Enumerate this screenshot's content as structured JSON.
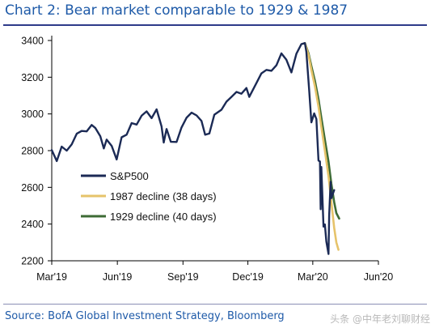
{
  "title": "Chart 2: Bear market comparable to 1929 & 1987",
  "source": "Source: BofA Global Investment Strategy, Bloomberg",
  "watermark": "头条 @中年老刘聊财经",
  "chart_data": {
    "type": "line",
    "title": "Chart 2: Bear market comparable to 1929 & 1987",
    "xlabel": "",
    "ylabel": "",
    "x_ticks": [
      "Mar'19",
      "Jun'19",
      "Sep'19",
      "Dec'19",
      "Mar'20",
      "Jun'20"
    ],
    "ylim": [
      2200,
      3400
    ],
    "y_ticks": [
      2200,
      2400,
      2600,
      2800,
      3000,
      3200,
      3400
    ],
    "grid": false,
    "legend_position": "lower-left",
    "series": [
      {
        "name": "S&P500",
        "color": "#1b2a55",
        "points": [
          [
            "2019-03-01",
            2803
          ],
          [
            "2019-03-08",
            2743
          ],
          [
            "2019-03-15",
            2822
          ],
          [
            "2019-03-22",
            2800
          ],
          [
            "2019-03-29",
            2834
          ],
          [
            "2019-04-05",
            2892
          ],
          [
            "2019-04-12",
            2907
          ],
          [
            "2019-04-19",
            2905
          ],
          [
            "2019-04-26",
            2940
          ],
          [
            "2019-05-01",
            2924
          ],
          [
            "2019-05-08",
            2879
          ],
          [
            "2019-05-13",
            2812
          ],
          [
            "2019-05-17",
            2860
          ],
          [
            "2019-05-24",
            2826
          ],
          [
            "2019-05-31",
            2752
          ],
          [
            "2019-06-07",
            2873
          ],
          [
            "2019-06-14",
            2887
          ],
          [
            "2019-06-21",
            2950
          ],
          [
            "2019-06-28",
            2942
          ],
          [
            "2019-07-05",
            2990
          ],
          [
            "2019-07-12",
            3014
          ],
          [
            "2019-07-19",
            2977
          ],
          [
            "2019-07-26",
            3025
          ],
          [
            "2019-08-02",
            2932
          ],
          [
            "2019-08-05",
            2844
          ],
          [
            "2019-08-09",
            2918
          ],
          [
            "2019-08-15",
            2848
          ],
          [
            "2019-08-23",
            2847
          ],
          [
            "2019-08-30",
            2926
          ],
          [
            "2019-09-06",
            2979
          ],
          [
            "2019-09-13",
            3007
          ],
          [
            "2019-09-20",
            2992
          ],
          [
            "2019-09-27",
            2962
          ],
          [
            "2019-10-02",
            2887
          ],
          [
            "2019-10-08",
            2893
          ],
          [
            "2019-10-15",
            2996
          ],
          [
            "2019-10-25",
            3023
          ],
          [
            "2019-11-01",
            3067
          ],
          [
            "2019-11-08",
            3093
          ],
          [
            "2019-11-15",
            3120
          ],
          [
            "2019-11-22",
            3110
          ],
          [
            "2019-11-29",
            3141
          ],
          [
            "2019-12-03",
            3093
          ],
          [
            "2019-12-13",
            3169
          ],
          [
            "2019-12-20",
            3221
          ],
          [
            "2019-12-27",
            3240
          ],
          [
            "2020-01-03",
            3235
          ],
          [
            "2020-01-10",
            3265
          ],
          [
            "2020-01-17",
            3330
          ],
          [
            "2020-01-24",
            3295
          ],
          [
            "2020-01-31",
            3226
          ],
          [
            "2020-02-07",
            3328
          ],
          [
            "2020-02-14",
            3380
          ],
          [
            "2020-02-19",
            3386
          ],
          [
            "2020-02-21",
            3338
          ],
          [
            "2020-02-25",
            3128
          ],
          [
            "2020-02-28",
            2954
          ],
          [
            "2020-03-03",
            3003
          ],
          [
            "2020-03-06",
            2972
          ],
          [
            "2020-03-09",
            2746
          ],
          [
            "2020-03-11",
            2741
          ],
          [
            "2020-03-12",
            2481
          ],
          [
            "2020-03-13",
            2711
          ],
          [
            "2020-03-16",
            2386
          ],
          [
            "2020-03-18",
            2398
          ],
          [
            "2020-03-20",
            2305
          ],
          [
            "2020-03-23",
            2237
          ],
          [
            "2020-03-24",
            2447
          ],
          [
            "2020-03-26",
            2630
          ],
          [
            "2020-03-27",
            2541
          ],
          [
            "2020-03-31",
            2585
          ]
        ]
      },
      {
        "name": "1987 decline (38 days)",
        "color": "#e6c36a",
        "points": [
          [
            "2020-02-19",
            3386
          ],
          [
            "2020-02-24",
            3320
          ],
          [
            "2020-02-28",
            3240
          ],
          [
            "2020-03-04",
            3150
          ],
          [
            "2020-03-09",
            3040
          ],
          [
            "2020-03-13",
            2930
          ],
          [
            "2020-03-18",
            2800
          ],
          [
            "2020-03-23",
            2660
          ],
          [
            "2020-03-27",
            2520
          ],
          [
            "2020-03-31",
            2380
          ],
          [
            "2020-04-03",
            2300
          ],
          [
            "2020-04-06",
            2260
          ]
        ]
      },
      {
        "name": "1929 decline (40 days)",
        "color": "#3d6b35",
        "points": [
          [
            "2020-02-19",
            3386
          ],
          [
            "2020-02-24",
            3330
          ],
          [
            "2020-02-28",
            3260
          ],
          [
            "2020-03-04",
            3180
          ],
          [
            "2020-03-09",
            3080
          ],
          [
            "2020-03-13",
            2980
          ],
          [
            "2020-03-18",
            2860
          ],
          [
            "2020-03-23",
            2740
          ],
          [
            "2020-03-27",
            2620
          ],
          [
            "2020-03-31",
            2520
          ],
          [
            "2020-04-03",
            2460
          ],
          [
            "2020-04-07",
            2430
          ]
        ]
      }
    ]
  }
}
